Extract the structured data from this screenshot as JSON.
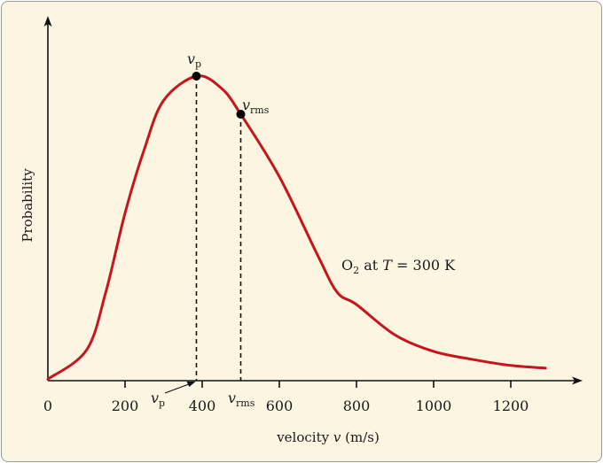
{
  "chart_data": {
    "type": "line",
    "title": "",
    "xlabel": "velocity v (m/s)",
    "xlabel_parts": {
      "pre": "velocity ",
      "var": "v",
      "post": " (m/s)"
    },
    "ylabel": "Probability",
    "xlim": [
      0,
      1380
    ],
    "ylim": [
      0,
      1.19
    ],
    "x_ticks": [
      0,
      200,
      400,
      600,
      800,
      1000,
      1200
    ],
    "x_tick_labels": [
      "0",
      "200",
      "400",
      "600",
      "800",
      "1000",
      "1200"
    ],
    "grid": false,
    "annotation": {
      "species": "O",
      "subscript": "2",
      "mid": " at ",
      "var": "T",
      "post": " = 300 K"
    },
    "markers": [
      {
        "label_var": "v",
        "label_sub": "p",
        "x": 385,
        "y": 1.0
      },
      {
        "label_var": "v",
        "label_sub": "rms",
        "x": 500,
        "y": 0.875
      }
    ],
    "series": [
      {
        "color": "#c4161c",
        "x": [
          0,
          100,
          150,
          200,
          250,
          300,
          385,
          450,
          500,
          600,
          700,
          750,
          800,
          900,
          1000,
          1100,
          1200,
          1290
        ],
        "y": [
          0.005,
          0.1,
          0.29,
          0.55,
          0.76,
          0.92,
          1.0,
          0.96,
          0.875,
          0.67,
          0.41,
          0.29,
          0.25,
          0.15,
          0.096,
          0.07,
          0.05,
          0.041
        ]
      }
    ]
  }
}
